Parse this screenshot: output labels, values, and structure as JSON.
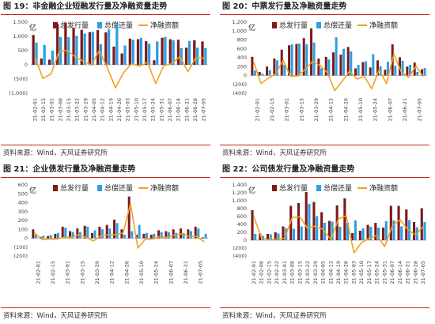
{
  "source_text": "资料来源：Wind，天风证券研究所",
  "colors": {
    "issue": "#7b1a1e",
    "repay": "#2e9fe0",
    "net": "#f0a21c",
    "rule": "#c0241c"
  },
  "chart_data": [
    {
      "type": "bar",
      "panel_title": "图 19：非金融企业短融发行量及净融资量走势",
      "unit": "亿",
      "legend": [
        "总发行量",
        "总偿还量",
        "净融资额"
      ],
      "ylim": [
        -1000,
        1500
      ],
      "yticks": [
        1500,
        1000,
        500,
        0,
        -500,
        -1000
      ],
      "ytick_labels": [
        "1,500",
        "1,000",
        "500",
        "0",
        "(500)",
        "(1,000)"
      ],
      "x_labels": [
        "21-02-01",
        "21-02-15",
        "21-03-01",
        "21-03-08",
        "21-03-15",
        "21-03-22",
        "21-03-29",
        "21-04-05",
        "21-04-12",
        "21-04-19",
        "21-04-26",
        "21-05-03",
        "21-05-10",
        "21-05-17",
        "21-05-24",
        "21-05-31",
        "21-06-07",
        "21-06-14",
        "21-06-21",
        "21-06-28",
        "21-07-05"
      ],
      "series": [
        {
          "name": "总发行量",
          "values": [
            1050,
            220,
            180,
            1430,
            1480,
            1300,
            1230,
            1150,
            1220,
            1140,
            640,
            400,
            920,
            900,
            830,
            160,
            950,
            900,
            880,
            600,
            860,
            820
          ]
        },
        {
          "name": "总偿还量",
          "values": [
            780,
            700,
            500,
            980,
            970,
            1020,
            1100,
            1160,
            720,
            1240,
            1450,
            680,
            880,
            950,
            740,
            820,
            980,
            860,
            590,
            840,
            600,
            590
          ]
        },
        {
          "name": "净融资额",
          "values": [
            270,
            -480,
            -320,
            450,
            510,
            280,
            130,
            -10,
            500,
            -100,
            -810,
            -280,
            40,
            -50,
            90,
            -660,
            -30,
            40,
            290,
            -240,
            260,
            230
          ]
        }
      ]
    },
    {
      "type": "bar",
      "panel_title": "图 20：中票发行量及净融资量走势",
      "unit": "亿",
      "legend": [
        "总发行量",
        "总偿还量",
        "净融资额"
      ],
      "ylim": [
        -400,
        1200
      ],
      "yticks": [
        1200,
        1000,
        800,
        600,
        400,
        200,
        0,
        -200,
        -400
      ],
      "ytick_labels": [
        "1,200",
        "1,000",
        "800",
        "600",
        "400",
        "200",
        "0",
        "(200)",
        "(400)"
      ],
      "x_labels": [
        "21-02-01",
        "21-02-15",
        "21-03-01",
        "21-03-15",
        "21-03-29",
        "21-04-12",
        "21-04-26",
        "21-05-10",
        "21-05-24",
        "21-06-07",
        "21-06-21",
        "21-07-05"
      ],
      "series": [
        {
          "name": "总发行量",
          "values": [
            420,
            80,
            200,
            380,
            580,
            680,
            710,
            840,
            1060,
            380,
            420,
            520,
            470,
            640,
            160,
            300,
            180,
            340,
            130,
            700,
            410,
            200,
            290,
            140
          ]
        },
        {
          "name": "总偿还量",
          "values": [
            110,
            40,
            120,
            340,
            240,
            700,
            720,
            700,
            740,
            160,
            360,
            860,
            600,
            540,
            240,
            320,
            480,
            210,
            310,
            220,
            330,
            240,
            80,
            170
          ]
        },
        {
          "name": "净融资额",
          "values": [
            310,
            -180,
            -60,
            40,
            340,
            -20,
            -10,
            140,
            320,
            220,
            60,
            -340,
            -130,
            100,
            -80,
            -20,
            -300,
            130,
            -180,
            480,
            80,
            -40,
            210,
            -30
          ]
        }
      ]
    },
    {
      "type": "bar",
      "panel_title": "图 21：企业债发行量及净融资量走势",
      "unit": "亿",
      "legend": [
        "总发行量",
        "总偿还量",
        "净融资额"
      ],
      "ylim": [
        -200,
        600
      ],
      "yticks": [
        600,
        500,
        400,
        300,
        200,
        100,
        0,
        -100,
        -200
      ],
      "ytick_labels": [
        "600",
        "500",
        "400",
        "300",
        "200",
        "100",
        "0",
        "(100)",
        "(200)"
      ],
      "x_labels": [
        "21-02-01",
        "21-02-15",
        "21-03-01",
        "21-03-15",
        "21-03-29",
        "21-04-12",
        "21-04-26",
        "21-05-10",
        "21-05-24",
        "21-06-07",
        "21-06-21",
        "21-07-05"
      ],
      "series": [
        {
          "name": "总发行量",
          "values": [
            100,
            15,
            25,
            50,
            130,
            80,
            110,
            140,
            60,
            130,
            150,
            210,
            100,
            470,
            40,
            50,
            40,
            90,
            80,
            100,
            110,
            100,
            130,
            10
          ]
        },
        {
          "name": "总偿还量",
          "values": [
            40,
            30,
            35,
            60,
            120,
            70,
            70,
            130,
            90,
            100,
            110,
            170,
            40,
            80,
            150,
            60,
            50,
            70,
            70,
            60,
            60,
            80,
            110,
            50
          ]
        },
        {
          "name": "净融资额",
          "values": [
            60,
            -15,
            -10,
            -10,
            10,
            10,
            40,
            10,
            -30,
            30,
            40,
            40,
            60,
            390,
            -110,
            -10,
            -10,
            20,
            10,
            40,
            50,
            20,
            20,
            -40
          ]
        }
      ]
    },
    {
      "type": "bar",
      "panel_title": "图 22：公司债发行量及净融资量走势",
      "unit": "亿",
      "legend": [
        "总发行量",
        "总偿还量",
        "净融资额"
      ],
      "ylim": [
        -400,
        1400
      ],
      "yticks": [
        1400,
        1200,
        1000,
        800,
        600,
        400,
        200,
        0,
        -200,
        -400
      ],
      "ytick_labels": [
        "1,400",
        "1,200",
        "1,000",
        "800",
        "600",
        "400",
        "200",
        "0",
        "(200)",
        "(400)"
      ],
      "x_labels": [
        "21-02-01",
        "21-02-08",
        "21-02-15",
        "21-02-22",
        "21-03-01",
        "21-03-08",
        "21-03-15",
        "21-03-22",
        "21-03-29",
        "21-04-05",
        "21-04-12",
        "21-04-19",
        "21-04-26",
        "21-05-03",
        "21-05-10",
        "21-05-17",
        "21-05-24",
        "21-05-31",
        "21-06-07",
        "21-06-14",
        "21-06-21",
        "21-06-28",
        "21-07-05"
      ],
      "series": [
        {
          "name": "总发行量",
          "values": [
            760,
            170,
            160,
            200,
            350,
            870,
            940,
            1220,
            970,
            710,
            490,
            880,
            1060,
            180,
            240,
            390,
            440,
            320,
            870,
            870,
            780,
            460,
            810
          ]
        },
        {
          "name": "总偿还量",
          "values": [
            160,
            110,
            150,
            170,
            300,
            290,
            350,
            920,
            610,
            440,
            470,
            340,
            440,
            500,
            300,
            340,
            320,
            480,
            500,
            350,
            510,
            330,
            460
          ]
        },
        {
          "name": "净融资额",
          "values": [
            600,
            60,
            10,
            30,
            50,
            580,
            590,
            300,
            360,
            270,
            20,
            540,
            620,
            -320,
            -60,
            50,
            120,
            -160,
            370,
            520,
            270,
            130,
            350
          ]
        }
      ]
    }
  ]
}
